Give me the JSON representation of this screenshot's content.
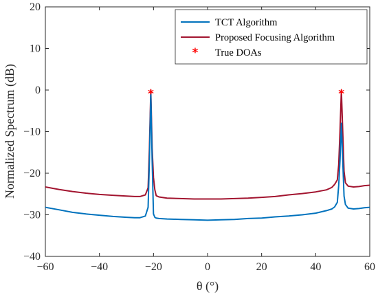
{
  "chart_data": {
    "type": "line",
    "xlabel": "θ (°)",
    "ylabel": "Normalized Spectrum (dB)",
    "xlim": [
      -60,
      60
    ],
    "ylim": [
      -40,
      20
    ],
    "xticks": [
      -60,
      -40,
      -20,
      0,
      20,
      40,
      60
    ],
    "yticks": [
      -40,
      -30,
      -20,
      -10,
      0,
      10,
      20
    ],
    "grid": false,
    "legend_position": "top-right",
    "colors": {
      "tct": "#0072BD",
      "proposed": "#A2142F",
      "true_doa": "#FF0000"
    },
    "series": [
      {
        "name": "TCT Algorithm",
        "style": "line",
        "x": [
          -60,
          -55,
          -50,
          -45,
          -40,
          -35,
          -30,
          -27,
          -25,
          -23,
          -22,
          -21.5,
          -21,
          -20.5,
          -20,
          -19.5,
          -19,
          -18,
          -15,
          -10,
          -5,
          0,
          5,
          10,
          15,
          20,
          25,
          30,
          35,
          40,
          44,
          46,
          47,
          48,
          48.5,
          49,
          49.5,
          50,
          50.5,
          51,
          52,
          54,
          56,
          58,
          60
        ],
        "y": [
          -28.2,
          -28.8,
          -29.4,
          -29.8,
          -30.1,
          -30.4,
          -30.6,
          -30.7,
          -30.7,
          -30.3,
          -28.2,
          -17,
          -1,
          -17,
          -29.8,
          -30.6,
          -30.8,
          -30.9,
          -31,
          -31.1,
          -31.2,
          -31.3,
          -31.2,
          -31.1,
          -30.9,
          -30.8,
          -30.5,
          -30.3,
          -30,
          -29.6,
          -29,
          -28.6,
          -28.1,
          -27,
          -23,
          -17,
          -8,
          -17,
          -25.5,
          -27.5,
          -28.4,
          -28.6,
          -28.5,
          -28.3,
          -28.2
        ]
      },
      {
        "name": "Proposed Focusing Algorithm",
        "style": "line",
        "x": [
          -60,
          -55,
          -50,
          -45,
          -40,
          -35,
          -30,
          -27,
          -25,
          -23,
          -22,
          -21.5,
          -21,
          -20.5,
          -20,
          -19.5,
          -19,
          -18,
          -15,
          -10,
          -5,
          0,
          5,
          10,
          15,
          20,
          25,
          30,
          35,
          40,
          44,
          46,
          47,
          48,
          48.5,
          49,
          49.5,
          50,
          50.5,
          51,
          52,
          54,
          56,
          58,
          60
        ],
        "y": [
          -23.3,
          -23.9,
          -24.4,
          -24.8,
          -25.1,
          -25.3,
          -25.5,
          -25.6,
          -25.6,
          -25.2,
          -23.5,
          -14,
          0,
          -14,
          -21,
          -24,
          -25.4,
          -25.7,
          -26,
          -26.1,
          -26.2,
          -26.2,
          -26.2,
          -26.1,
          -26,
          -25.8,
          -25.6,
          -25.2,
          -24.9,
          -24.5,
          -24,
          -23.4,
          -22.7,
          -21.6,
          -18,
          -10,
          0,
          -10,
          -19.5,
          -22.3,
          -23.1,
          -23.3,
          -23.2,
          -23,
          -22.9
        ]
      },
      {
        "name": "True DOAs",
        "style": "markers",
        "x": [
          -21,
          49.5
        ],
        "y": [
          0,
          0
        ]
      }
    ]
  }
}
